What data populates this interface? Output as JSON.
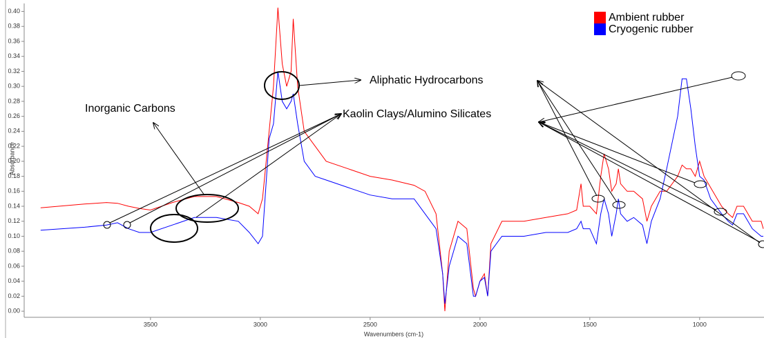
{
  "chart_data": {
    "type": "line",
    "x_label": "Wavenumbers (cm-1)",
    "y_label": "Absorbance",
    "xlim": [
      4075,
      707
    ],
    "ylim": [
      -0.01,
      0.406
    ],
    "xticks": [
      3500,
      3000,
      2500,
      2000,
      1500,
      1000
    ],
    "yticks": [
      {
        "value": 0,
        "label": "0.00"
      },
      {
        "value": 0.02,
        "label": "0.02"
      },
      {
        "value": 0.04,
        "label": "0.04"
      },
      {
        "value": 0.06,
        "label": "0.06"
      },
      {
        "value": 0.08,
        "label": "0.08"
      },
      {
        "value": 0.1,
        "label": "0.10"
      },
      {
        "value": 0.12,
        "label": "0.12"
      },
      {
        "value": 0.14,
        "label": "0.14"
      },
      {
        "value": 0.16,
        "label": "0.16"
      },
      {
        "value": 0.18,
        "label": "0.18"
      },
      {
        "value": 0.2,
        "label": "0.20"
      },
      {
        "value": 0.22,
        "label": "0.22"
      },
      {
        "value": 0.24,
        "label": "0.24"
      },
      {
        "value": 0.26,
        "label": "0.26"
      },
      {
        "value": 0.28,
        "label": "0.28"
      },
      {
        "value": 0.3,
        "label": "0.30"
      },
      {
        "value": 0.32,
        "label": "0.32"
      },
      {
        "value": 0.34,
        "label": "0.34"
      },
      {
        "value": 0.36,
        "label": "0.36"
      },
      {
        "value": 0.38,
        "label": "0.38"
      },
      {
        "value": 0.4,
        "label": "0.40"
      }
    ],
    "legend": "upper right",
    "x": [
      4000,
      3800,
      3700,
      3650,
      3600,
      3550,
      3500,
      3400,
      3300,
      3200,
      3100,
      3050,
      3010,
      2990,
      2960,
      2940,
      2920,
      2900,
      2880,
      2860,
      2850,
      2830,
      2800,
      2750,
      2700,
      2600,
      2500,
      2400,
      2300,
      2250,
      2200,
      2170,
      2160,
      2140,
      2100,
      2060,
      2030,
      2020,
      2000,
      1980,
      1965,
      1950,
      1900,
      1800,
      1700,
      1600,
      1560,
      1540,
      1530,
      1500,
      1470,
      1450,
      1435,
      1415,
      1400,
      1380,
      1370,
      1360,
      1330,
      1300,
      1260,
      1240,
      1220,
      1180,
      1150,
      1100,
      1080,
      1060,
      1040,
      1020,
      1000,
      980,
      950,
      900,
      870,
      850,
      830,
      800,
      760,
      720,
      710
    ],
    "series": [
      {
        "name": "Ambient rubber",
        "color": "#ff0000",
        "values": [
          0.138,
          0.143,
          0.145,
          0.144,
          0.14,
          0.137,
          0.135,
          0.145,
          0.153,
          0.153,
          0.145,
          0.14,
          0.13,
          0.15,
          0.24,
          0.3,
          0.405,
          0.33,
          0.3,
          0.32,
          0.39,
          0.3,
          0.24,
          0.22,
          0.2,
          0.19,
          0.18,
          0.175,
          0.168,
          0.16,
          0.13,
          0.05,
          0.0,
          0.08,
          0.12,
          0.11,
          0.03,
          0.02,
          0.04,
          0.05,
          0.02,
          0.09,
          0.12,
          0.12,
          0.125,
          0.13,
          0.135,
          0.17,
          0.14,
          0.14,
          0.13,
          0.18,
          0.21,
          0.19,
          0.16,
          0.17,
          0.19,
          0.17,
          0.16,
          0.16,
          0.15,
          0.12,
          0.14,
          0.16,
          0.16,
          0.18,
          0.195,
          0.19,
          0.19,
          0.18,
          0.2,
          0.18,
          0.165,
          0.14,
          0.13,
          0.125,
          0.14,
          0.14,
          0.12,
          0.12,
          0.11
        ]
      },
      {
        "name": "Cryogenic rubber",
        "color": "#0000ff",
        "values": [
          0.108,
          0.112,
          0.115,
          0.118,
          0.11,
          0.105,
          0.105,
          0.115,
          0.125,
          0.125,
          0.12,
          0.105,
          0.09,
          0.1,
          0.23,
          0.25,
          0.32,
          0.28,
          0.27,
          0.28,
          0.29,
          0.25,
          0.2,
          0.18,
          0.175,
          0.165,
          0.155,
          0.15,
          0.15,
          0.13,
          0.11,
          0.05,
          0.01,
          0.06,
          0.1,
          0.09,
          0.02,
          0.02,
          0.04,
          0.045,
          0.02,
          0.08,
          0.1,
          0.1,
          0.105,
          0.105,
          0.11,
          0.12,
          0.11,
          0.11,
          0.09,
          0.13,
          0.15,
          0.13,
          0.1,
          0.13,
          0.15,
          0.13,
          0.12,
          0.125,
          0.115,
          0.09,
          0.12,
          0.15,
          0.19,
          0.26,
          0.31,
          0.31,
          0.27,
          0.22,
          0.18,
          0.175,
          0.15,
          0.13,
          0.12,
          0.115,
          0.13,
          0.13,
          0.11,
          0.1,
          0.1
        ]
      }
    ],
    "annotations": [
      "Aliphatic Hydrocarbons",
      "Inorganic Carbons",
      "Kaolin Clays/Alumino Silicates"
    ]
  }
}
